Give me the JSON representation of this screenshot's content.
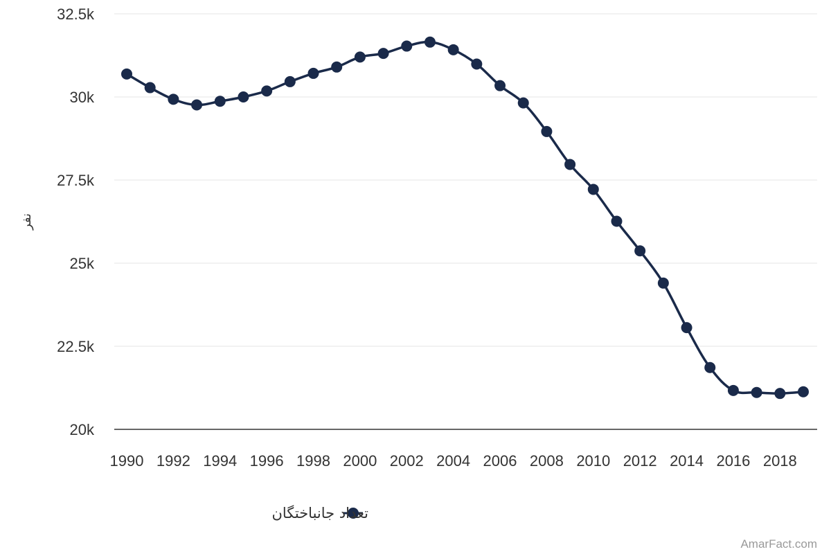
{
  "chart_data": {
    "type": "line",
    "title": "",
    "xlabel": "",
    "ylabel": "نفر",
    "x": [
      1990,
      1991,
      1992,
      1993,
      1994,
      1995,
      1996,
      1997,
      1998,
      1999,
      2000,
      2001,
      2002,
      2003,
      2004,
      2005,
      2006,
      2007,
      2008,
      2009,
      2010,
      2011,
      2012,
      2013,
      2014,
      2015,
      2016,
      2017,
      2018,
      2019
    ],
    "x_tick_labels": [
      "1990",
      "1992",
      "1994",
      "1996",
      "1998",
      "2000",
      "2002",
      "2004",
      "2006",
      "2008",
      "2010",
      "2012",
      "2014",
      "2016",
      "2018"
    ],
    "y_tick_labels": [
      "20k",
      "22.5k",
      "25k",
      "27.5k",
      "30k",
      "32.5k"
    ],
    "ylim": [
      20000,
      32500
    ],
    "grid": true,
    "legend_position": "bottom-center",
    "series": [
      {
        "name": "تعداد جانباختگان",
        "color": "#1a2a4a",
        "values": [
          30690,
          30280,
          29930,
          29760,
          29870,
          30000,
          30180,
          30460,
          30710,
          30900,
          31200,
          31310,
          31530,
          31650,
          31420,
          30990,
          30340,
          29820,
          28960,
          27970,
          27220,
          26260,
          25370,
          24400,
          23060,
          21860,
          21170,
          21110,
          21080,
          21130
        ]
      }
    ]
  },
  "watermark": "AmarFact.com"
}
